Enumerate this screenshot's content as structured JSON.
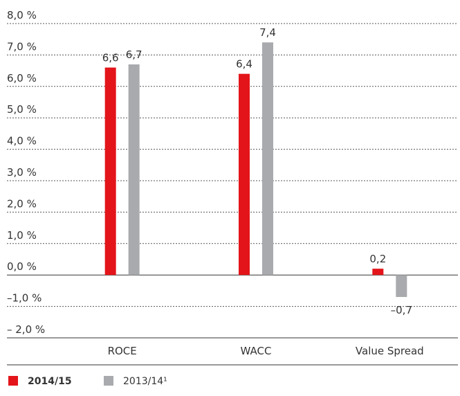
{
  "chart_data": {
    "type": "bar",
    "categories": [
      "ROCE",
      "WACC",
      "Value Spread"
    ],
    "series": [
      {
        "name": "2014/15",
        "color": "#e3151a",
        "values": [
          6.6,
          6.4,
          0.2
        ],
        "value_labels": [
          "6,6",
          "6,4",
          "0,2"
        ]
      },
      {
        "name": "2013/14¹",
        "color": "#a8aaad",
        "values": [
          6.7,
          7.4,
          -0.7
        ],
        "value_labels": [
          "6,7",
          "7,4",
          "–0,7"
        ]
      }
    ],
    "ylim": [
      -2,
      8
    ],
    "yticks": [
      {
        "value": -2,
        "label": "– 2,0 %"
      },
      {
        "value": -1,
        "label": "–1,0 %"
      },
      {
        "value": 0,
        "label": "0,0 %"
      },
      {
        "value": 1,
        "label": "1,0 %"
      },
      {
        "value": 2,
        "label": "2,0 %"
      },
      {
        "value": 3,
        "label": "3,0 %"
      },
      {
        "value": 4,
        "label": "4,0 %"
      },
      {
        "value": 5,
        "label": "5,0 %"
      },
      {
        "value": 6,
        "label": "6,0 %"
      },
      {
        "value": 7,
        "label": "7,0 %"
      },
      {
        "value": 8,
        "label": "8,0 %"
      }
    ],
    "grid": true
  }
}
